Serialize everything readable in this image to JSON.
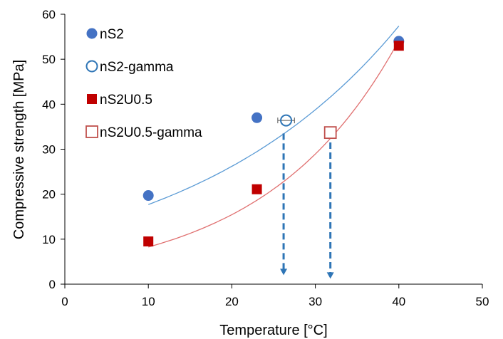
{
  "chart_data": {
    "type": "scatter",
    "xlabel": "Temperature [°C]",
    "ylabel": "Compressive strength [MPa]",
    "xlim": [
      0,
      50
    ],
    "ylim": [
      0,
      60
    ],
    "x_ticks": [
      0,
      10,
      20,
      30,
      40,
      50
    ],
    "y_ticks": [
      0,
      10,
      20,
      30,
      40,
      50,
      60
    ],
    "grid": false,
    "legend_position": "top-left",
    "series": [
      {
        "name": "nS2",
        "marker": "filled-circle",
        "color": "#4472c4",
        "points": [
          [
            10,
            19.7
          ],
          [
            23,
            37
          ],
          [
            40,
            54
          ]
        ]
      },
      {
        "name": "nS2-gamma",
        "marker": "open-circle",
        "color": "#2e75b6",
        "points": [
          [
            26.5,
            36.4
          ]
        ],
        "x_error": 1.0
      },
      {
        "name": "nS2U0.5",
        "marker": "filled-square",
        "color": "#c00000",
        "points": [
          [
            10,
            9.5
          ],
          [
            23,
            21.1
          ],
          [
            40,
            53
          ]
        ]
      },
      {
        "name": "nS2U0.5-gamma",
        "marker": "open-square",
        "color": "#c0504d",
        "points": [
          [
            31.8,
            33.7
          ]
        ]
      }
    ],
    "trendlines": [
      {
        "series": "nS2",
        "type": "exponential",
        "color": "#5b9bd5",
        "x_range": [
          10,
          40
        ],
        "a": 11.96,
        "b": 0.0392
      },
      {
        "series": "nS2U0.5",
        "type": "exponential",
        "color": "#e07070",
        "x_range": [
          10,
          40
        ],
        "a": 4.41,
        "b": 0.0627
      }
    ],
    "annotations": [
      {
        "type": "dashed-arrow-down",
        "color": "#2e75b6",
        "x": 26.2,
        "from_y": 33.5,
        "to_y": 2.0
      },
      {
        "type": "dashed-arrow-down",
        "color": "#2e75b6",
        "x": 31.8,
        "from_y": 31.5,
        "to_y": 1.2
      }
    ]
  }
}
